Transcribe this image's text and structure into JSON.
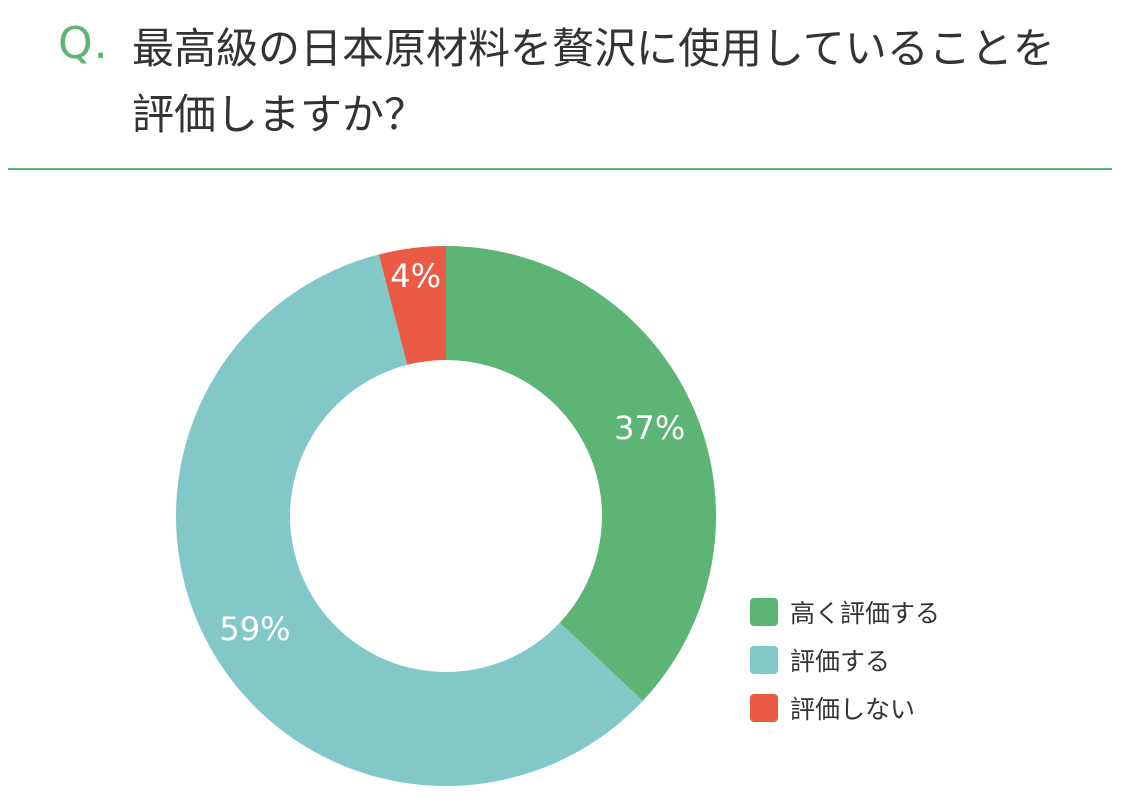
{
  "question": {
    "mark": "Q.",
    "text": "最高級の日本原材料を贅沢に使用していることを評価しますか？"
  },
  "colors": {
    "accent": "#5cb574",
    "high": "#5cb574",
    "mid": "#82c8c9",
    "low": "#ea5a44"
  },
  "chart_data": {
    "type": "pie",
    "title": "最高級の日本原材料を贅沢に使用していることを評価しますか？",
    "categories": [
      "高く評価する",
      "評価する",
      "評価しない"
    ],
    "values": [
      37,
      59,
      4
    ],
    "data_labels": [
      "37%",
      "59%",
      "4%"
    ],
    "colors": [
      "#5cb574",
      "#82c8c9",
      "#ea5a44"
    ],
    "donut": true,
    "start_angle": "12 o'clock",
    "direction": "clockwise",
    "legend": "bottom-right"
  }
}
